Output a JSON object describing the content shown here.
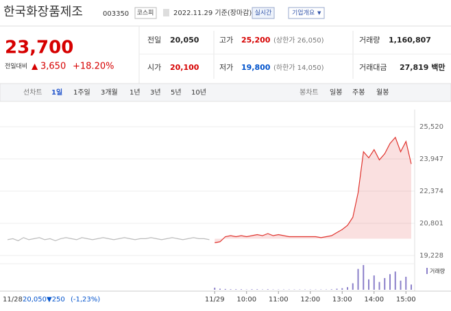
{
  "header": {
    "title": "한국화장품제조",
    "code": "003350",
    "market": "코스피",
    "date": "2022.11.29 기준(장마감)",
    "realtime": "실시간",
    "company": "기업개요"
  },
  "price": {
    "current": "23,700",
    "change_label": "전일대비",
    "change": "3,650",
    "rate": "+18.20%"
  },
  "quote": {
    "rows": [
      [
        {
          "label": "전일",
          "value": "20,050"
        },
        {
          "label": "고가",
          "value": "25,200",
          "note": "(상한가 26,050)"
        },
        {
          "label": "거래량",
          "value": "1,160,807"
        }
      ],
      [
        {
          "label": "시가",
          "value": "20,100"
        },
        {
          "label": "저가",
          "value": "19,800",
          "note": "(하한가 14,050)"
        },
        {
          "label": "거래대금",
          "value": "27,819 백만"
        }
      ]
    ]
  },
  "tabs": {
    "line_label": "선차트",
    "line": [
      "1일",
      "1주일",
      "3개월",
      "1년",
      "3년",
      "5년",
      "10년"
    ],
    "candle_label": "봉차트",
    "candle": [
      "일봉",
      "주봉",
      "월봉"
    ]
  },
  "prev_info": {
    "price": "20,050",
    "change": "▼250",
    "rate": "(-1,23%)"
  },
  "chart_data": {
    "type": "line",
    "categories": [
      "11/28",
      null,
      null,
      null,
      null,
      null,
      null,
      null,
      null,
      null,
      null,
      null,
      null,
      null,
      null,
      null,
      null,
      null,
      null,
      null,
      null,
      null,
      null,
      null,
      null,
      null,
      null,
      null,
      null,
      null,
      null,
      null,
      null,
      null,
      null,
      null,
      null,
      null,
      null,
      "11/29",
      null,
      null,
      null,
      null,
      null,
      "10:00",
      null,
      null,
      null,
      null,
      null,
      "11:00",
      null,
      null,
      null,
      null,
      null,
      "12:00",
      null,
      null,
      null,
      null,
      null,
      "13:00",
      null,
      null,
      null,
      null,
      null,
      "14:00",
      null,
      null,
      null,
      null,
      null,
      "15:00",
      null
    ],
    "series": [
      {
        "color": "#bbbbbb",
        "values": [
          20000,
          20050,
          19950,
          20100,
          20000,
          20050,
          20100,
          20000,
          20050,
          19950,
          20050,
          20100,
          20050,
          20000,
          20100,
          20050,
          20000,
          20050,
          20100,
          20050,
          20000,
          20050,
          20100,
          20050,
          20000,
          20050,
          20050,
          20100,
          20050,
          20000,
          20050,
          20100,
          20050,
          20000,
          20050,
          20100,
          20050,
          20050,
          20000,
          null,
          null,
          null,
          null,
          null,
          null,
          null,
          null,
          null,
          null,
          null,
          null,
          null,
          null,
          null,
          null,
          null,
          null,
          null,
          null,
          null,
          null,
          null,
          null,
          null,
          null,
          null,
          null,
          null,
          null,
          null,
          null,
          null,
          null,
          null,
          null,
          null,
          null
        ]
      },
      {
        "color": "#e0322c",
        "values": [
          null,
          null,
          null,
          null,
          null,
          null,
          null,
          null,
          null,
          null,
          null,
          null,
          null,
          null,
          null,
          null,
          null,
          null,
          null,
          null,
          null,
          null,
          null,
          null,
          null,
          null,
          null,
          null,
          null,
          null,
          null,
          null,
          null,
          null,
          null,
          null,
          null,
          null,
          null,
          19850,
          19900,
          20150,
          20200,
          20150,
          20200,
          20150,
          20200,
          20250,
          20200,
          20300,
          20200,
          20250,
          20200,
          20150,
          20150,
          20150,
          20150,
          20150,
          20150,
          20100,
          20150,
          20200,
          20350,
          20500,
          20700,
          21100,
          22300,
          24300,
          24000,
          24400,
          23900,
          24200,
          24700,
          25000,
          24300,
          24800,
          23700
        ]
      }
    ],
    "volume": {
      "name": "거래량",
      "color": "#8a7fc9",
      "ylim": [
        0,
        100
      ],
      "values": [
        null,
        null,
        null,
        null,
        null,
        null,
        null,
        null,
        null,
        null,
        null,
        null,
        null,
        null,
        null,
        null,
        null,
        null,
        null,
        null,
        null,
        null,
        null,
        null,
        null,
        null,
        null,
        null,
        null,
        null,
        null,
        null,
        null,
        null,
        null,
        null,
        null,
        null,
        null,
        8,
        4,
        3,
        2,
        2,
        2,
        1,
        2,
        2,
        1,
        2,
        1,
        1,
        1,
        1,
        1,
        1,
        1,
        1,
        1,
        1,
        1,
        2,
        4,
        6,
        10,
        25,
        80,
        95,
        40,
        55,
        30,
        45,
        60,
        70,
        35,
        50,
        20
      ]
    },
    "ylim": [
      19228,
      25520
    ],
    "yticks": [
      {
        "value": 25520,
        "label": "25,520"
      },
      {
        "value": 23947,
        "label": "23,947"
      },
      {
        "value": 22374,
        "label": "22,374"
      },
      {
        "value": 20801,
        "label": "20,801"
      },
      {
        "value": 19228,
        "label": "19,228"
      }
    ],
    "grid": true
  }
}
